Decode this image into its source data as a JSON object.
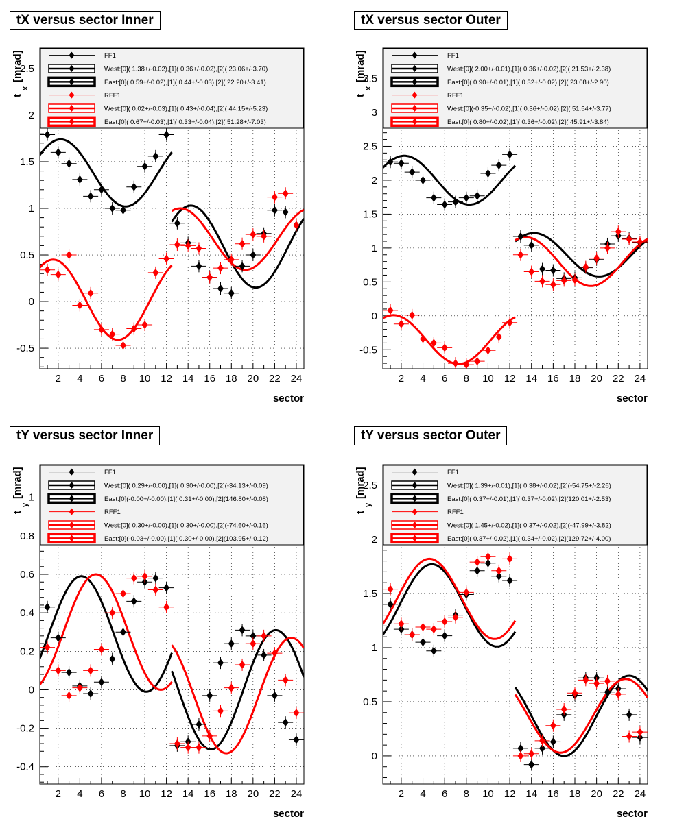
{
  "colors": {
    "ff1": "#000000",
    "rff1": "#ff0000",
    "legend_bg": "#f2f2f2"
  },
  "chart_data": [
    {
      "type": "scatter",
      "title": "tX versus  sector Inner",
      "xlabel": "sector",
      "ylabel_main": "t",
      "ylabel_sub": "x",
      "ylabel_unit": "[mrad]",
      "xlim": [
        0.3,
        24.7
      ],
      "ylim": [
        -0.72,
        2.72
      ],
      "plot_ymax": 1.84,
      "xticks": [
        2,
        4,
        6,
        8,
        10,
        12,
        14,
        16,
        18,
        20,
        22,
        24
      ],
      "yticks": [
        -0.5,
        0,
        0.5,
        1,
        1.5,
        2,
        2.5
      ],
      "legend": [
        {
          "label": "FF1",
          "color": "#000000",
          "kind": "marker"
        },
        {
          "label": "West:[0]( 1.38+/-0.02),[1](  0.36+/-0.02),[2]( 23.06+/-3.70)",
          "color": "#000000",
          "kind": "box1"
        },
        {
          "label": "East:[0]( 0.59+/-0.02),[1](  0.44+/-0.03),[2]( 22.20+/-3.41)",
          "color": "#000000",
          "kind": "box2"
        },
        {
          "label": "RFF1",
          "color": "#ff0000",
          "kind": "marker"
        },
        {
          "label": "West:[0]( 0.02+/-0.03),[1](  0.43+/-0.04),[2]( 44.15+/-5.23)",
          "color": "#ff0000",
          "kind": "box1"
        },
        {
          "label": "East:[0]( 0.67+/-0.03),[1](  0.33+/-0.04),[2]( 51.28+/-7.03)",
          "color": "#ff0000",
          "kind": "box2"
        }
      ],
      "series": [
        {
          "color": "#000000",
          "x": [
            1,
            2,
            3,
            4,
            5,
            6,
            7,
            8,
            9,
            10,
            11,
            12,
            13,
            14,
            15,
            16,
            17,
            18,
            19,
            20,
            21,
            22,
            23,
            24
          ],
          "y": [
            1.79,
            1.6,
            1.48,
            1.31,
            1.13,
            1.2,
            1.0,
            0.98,
            1.23,
            1.45,
            1.56,
            1.79,
            0.84,
            0.63,
            0.38,
            0.26,
            0.14,
            0.09,
            0.38,
            0.5,
            0.73,
            0.98,
            0.96,
            0.82
          ]
        },
        {
          "color": "#ff0000",
          "x": [
            1,
            2,
            3,
            4,
            5,
            6,
            7,
            8,
            9,
            10,
            11,
            12,
            13,
            14,
            15,
            16,
            17,
            18,
            19,
            20,
            21,
            22,
            23,
            24
          ],
          "y": [
            0.34,
            0.29,
            0.5,
            -0.04,
            0.09,
            -0.3,
            -0.35,
            -0.47,
            -0.29,
            -0.25,
            0.31,
            0.46,
            0.61,
            0.6,
            0.57,
            0.26,
            0.36,
            0.45,
            0.62,
            0.72,
            0.7,
            1.12,
            1.16,
            0.82
          ]
        }
      ],
      "fits": [
        {
          "color": "#000000",
          "x0": 0.3,
          "x1": 12.5,
          "a": 1.38,
          "b": 0.36,
          "phi": 23.06
        },
        {
          "color": "#000000",
          "x0": 12.5,
          "x1": 24.7,
          "a": 0.59,
          "b": 0.44,
          "phi": 22.2
        },
        {
          "color": "#ff0000",
          "x0": 0.3,
          "x1": 12.5,
          "a": 0.02,
          "b": 0.43,
          "phi": 44.15
        },
        {
          "color": "#ff0000",
          "x0": 12.5,
          "x1": 24.7,
          "a": 0.67,
          "b": 0.33,
          "phi": 51.28
        }
      ]
    },
    {
      "type": "scatter",
      "title": "tX versus  sector Outer",
      "xlabel": "sector",
      "ylabel_main": "t",
      "ylabel_sub": "x",
      "ylabel_unit": "[mrad]",
      "xlim": [
        0.3,
        24.7
      ],
      "ylim": [
        -0.78,
        3.95
      ],
      "plot_ymax": 2.6,
      "xticks": [
        2,
        4,
        6,
        8,
        10,
        12,
        14,
        16,
        18,
        20,
        22,
        24
      ],
      "yticks": [
        -0.5,
        0,
        0.5,
        1,
        1.5,
        2,
        2.5,
        3,
        3.5
      ],
      "legend": [
        {
          "label": "FF1",
          "color": "#000000",
          "kind": "marker"
        },
        {
          "label": "West:[0]( 2.00+/-0.01),[1](  0.36+/-0.02),[2]( 21.53+/-2.38)",
          "color": "#000000",
          "kind": "box1"
        },
        {
          "label": "East:[0]( 0.90+/-0.01),[1](  0.32+/-0.02),[2]( 23.08+/-2.90)",
          "color": "#000000",
          "kind": "box2"
        },
        {
          "label": "RFF1",
          "color": "#ff0000",
          "kind": "marker"
        },
        {
          "label": "West:[0](-0.35+/-0.02),[1](  0.36+/-0.02),[2]( 51.54+/-3.77)",
          "color": "#ff0000",
          "kind": "box1"
        },
        {
          "label": "East:[0]( 0.80+/-0.02),[1](  0.36+/-0.02),[2]( 45.91+/-3.84)",
          "color": "#ff0000",
          "kind": "box2"
        }
      ],
      "series": [
        {
          "color": "#000000",
          "x": [
            1,
            2,
            3,
            4,
            5,
            6,
            7,
            8,
            9,
            10,
            11,
            12,
            13,
            14,
            15,
            16,
            17,
            18,
            19,
            20,
            21,
            22,
            23,
            24
          ],
          "y": [
            2.27,
            2.25,
            2.12,
            2.0,
            1.74,
            1.64,
            1.68,
            1.74,
            1.77,
            2.1,
            2.22,
            2.38,
            1.17,
            1.04,
            0.69,
            0.67,
            0.55,
            0.56,
            0.71,
            0.83,
            1.06,
            1.18,
            1.14,
            1.08
          ]
        },
        {
          "color": "#ff0000",
          "x": [
            1,
            2,
            3,
            4,
            5,
            6,
            7,
            8,
            9,
            10,
            11,
            12,
            13,
            14,
            15,
            16,
            17,
            18,
            19,
            20,
            21,
            22,
            23,
            24
          ],
          "y": [
            0.08,
            -0.12,
            0.01,
            -0.34,
            -0.4,
            -0.47,
            -0.7,
            -0.72,
            -0.67,
            -0.51,
            -0.31,
            -0.1,
            0.9,
            0.65,
            0.51,
            0.46,
            0.52,
            0.53,
            0.72,
            0.85,
            1.0,
            1.24,
            1.13,
            1.09
          ]
        }
      ],
      "fits": [
        {
          "color": "#000000",
          "x0": 0.3,
          "x1": 12.5,
          "a": 2.0,
          "b": 0.36,
          "phi": 21.53
        },
        {
          "color": "#000000",
          "x0": 12.5,
          "x1": 24.7,
          "a": 0.9,
          "b": 0.32,
          "phi": 23.08
        },
        {
          "color": "#ff0000",
          "x0": 0.3,
          "x1": 12.5,
          "a": -0.35,
          "b": 0.36,
          "phi": 51.54
        },
        {
          "color": "#ff0000",
          "x0": 12.5,
          "x1": 24.7,
          "a": 0.8,
          "b": 0.36,
          "phi": 45.91
        }
      ]
    },
    {
      "type": "scatter",
      "title": "tY versus  sector Inner",
      "xlabel": "sector",
      "ylabel_main": "t",
      "ylabel_sub": "y",
      "ylabel_unit": "[mrad]",
      "xlim": [
        0.3,
        24.7
      ],
      "ylim": [
        -0.49,
        1.17
      ],
      "plot_ymax": 0.74,
      "xticks": [
        2,
        4,
        6,
        8,
        10,
        12,
        14,
        16,
        18,
        20,
        22,
        24
      ],
      "yticks": [
        -0.4,
        -0.2,
        0,
        0.2,
        0.4,
        0.6,
        0.8,
        1
      ],
      "legend": [
        {
          "label": "FF1",
          "color": "#000000",
          "kind": "marker"
        },
        {
          "label": "West:[0]( 0.29+/-0.00),[1](  0.30+/-0.00),[2](-34.13+/-0.09)",
          "color": "#000000",
          "kind": "box1"
        },
        {
          "label": "East:[0](-0.00+/-0.00),[1](  0.31+/-0.00),[2](146.80+/-0.08)",
          "color": "#000000",
          "kind": "box2"
        },
        {
          "label": "RFF1",
          "color": "#ff0000",
          "kind": "marker"
        },
        {
          "label": "West:[0]( 0.30+/-0.00),[1](  0.30+/-0.00),[2](-74.60+/-0.16)",
          "color": "#ff0000",
          "kind": "box1"
        },
        {
          "label": "East:[0](-0.03+/-0.00),[1](  0.30+/-0.00),[2](103.95+/-0.12)",
          "color": "#ff0000",
          "kind": "box2"
        }
      ],
      "series": [
        {
          "color": "#000000",
          "x": [
            1,
            2,
            3,
            4,
            5,
            6,
            7,
            8,
            9,
            10,
            11,
            12,
            13,
            14,
            15,
            16,
            17,
            18,
            19,
            20,
            21,
            22,
            23,
            24
          ],
          "y": [
            0.43,
            0.27,
            0.09,
            0.02,
            -0.02,
            0.04,
            0.16,
            0.3,
            0.46,
            0.56,
            0.58,
            0.53,
            -0.29,
            -0.27,
            -0.18,
            -0.03,
            0.14,
            0.24,
            0.31,
            0.28,
            0.18,
            -0.03,
            -0.17,
            -0.26
          ]
        },
        {
          "color": "#ff0000",
          "x": [
            1,
            2,
            3,
            4,
            5,
            6,
            7,
            8,
            9,
            10,
            11,
            12,
            13,
            14,
            15,
            16,
            17,
            18,
            19,
            20,
            21,
            22,
            23,
            24
          ],
          "y": [
            0.22,
            0.1,
            -0.03,
            0.01,
            0.1,
            0.21,
            0.4,
            0.5,
            0.58,
            0.59,
            0.52,
            0.43,
            -0.28,
            -0.3,
            -0.3,
            -0.24,
            -0.11,
            0.01,
            0.13,
            0.24,
            0.28,
            0.19,
            0.05,
            -0.12
          ]
        }
      ],
      "fits": [
        {
          "color": "#000000",
          "x0": 0.3,
          "x1": 12.5,
          "a": 0.29,
          "b": 0.3,
          "phi": -34.13
        },
        {
          "color": "#000000",
          "x0": 12.5,
          "x1": 24.7,
          "a": -0.0,
          "b": 0.31,
          "phi": 146.8
        },
        {
          "color": "#ff0000",
          "x0": 0.3,
          "x1": 12.5,
          "a": 0.3,
          "b": 0.3,
          "phi": -74.6
        },
        {
          "color": "#ff0000",
          "x0": 12.5,
          "x1": 24.7,
          "a": -0.03,
          "b": 0.3,
          "phi": 103.95
        }
      ]
    },
    {
      "type": "scatter",
      "title": "tY versus  sector Outer",
      "xlabel": "sector",
      "ylabel_main": "t",
      "ylabel_sub": "y",
      "ylabel_unit": "[mrad]",
      "xlim": [
        0.3,
        24.7
      ],
      "ylim": [
        -0.26,
        2.69
      ],
      "plot_ymax": 1.95,
      "xticks": [
        2,
        4,
        6,
        8,
        10,
        12,
        14,
        16,
        18,
        20,
        22,
        24
      ],
      "yticks": [
        0,
        0.5,
        1,
        1.5,
        2,
        2.5
      ],
      "legend": [
        {
          "label": "FF1",
          "color": "#000000",
          "kind": "marker"
        },
        {
          "label": "West:[0]( 1.39+/-0.01),[1](  0.38+/-0.02),[2](-54.75+/-2.26)",
          "color": "#000000",
          "kind": "box1"
        },
        {
          "label": "East:[0]( 0.37+/-0.01),[1](  0.37+/-0.02),[2](120.01+/-2.53)",
          "color": "#000000",
          "kind": "box2"
        },
        {
          "label": "RFF1",
          "color": "#ff0000",
          "kind": "marker"
        },
        {
          "label": "West:[0]( 1.45+/-0.02),[1](  0.37+/-0.02),[2](-47.99+/-3.82)",
          "color": "#ff0000",
          "kind": "box1"
        },
        {
          "label": "East:[0]( 0.37+/-0.02),[1](  0.34+/-0.02),[2](129.72+/-4.00)",
          "color": "#ff0000",
          "kind": "box2"
        }
      ],
      "series": [
        {
          "color": "#000000",
          "x": [
            1,
            2,
            3,
            4,
            5,
            6,
            7,
            8,
            9,
            10,
            11,
            12,
            13,
            14,
            15,
            16,
            17,
            18,
            19,
            20,
            21,
            22,
            23,
            24
          ],
          "y": [
            1.4,
            1.17,
            1.12,
            1.05,
            0.97,
            1.11,
            1.3,
            1.49,
            1.71,
            1.78,
            1.66,
            1.62,
            0.07,
            -0.08,
            0.07,
            0.13,
            0.38,
            0.56,
            0.72,
            0.72,
            0.59,
            0.62,
            0.38,
            0.17
          ]
        },
        {
          "color": "#ff0000",
          "x": [
            1,
            2,
            3,
            4,
            5,
            6,
            7,
            8,
            9,
            10,
            11,
            12,
            13,
            14,
            15,
            16,
            17,
            18,
            19,
            20,
            21,
            22,
            23,
            24
          ],
          "y": [
            1.54,
            1.22,
            1.12,
            1.19,
            1.17,
            1.24,
            1.28,
            1.51,
            1.79,
            1.84,
            1.71,
            1.82,
            0.0,
            0.02,
            0.14,
            0.28,
            0.43,
            0.58,
            0.7,
            0.67,
            0.69,
            0.57,
            0.18,
            0.22
          ]
        }
      ],
      "fits": [
        {
          "color": "#000000",
          "x0": 0.3,
          "x1": 12.5,
          "a": 1.39,
          "b": 0.38,
          "phi": -54.75
        },
        {
          "color": "#000000",
          "x0": 12.5,
          "x1": 24.7,
          "a": 0.37,
          "b": 0.37,
          "phi": 120.01
        },
        {
          "color": "#ff0000",
          "x0": 0.3,
          "x1": 12.5,
          "a": 1.45,
          "b": 0.37,
          "phi": -47.99
        },
        {
          "color": "#ff0000",
          "x0": 12.5,
          "x1": 24.7,
          "a": 0.37,
          "b": 0.34,
          "phi": 129.72
        }
      ]
    }
  ]
}
